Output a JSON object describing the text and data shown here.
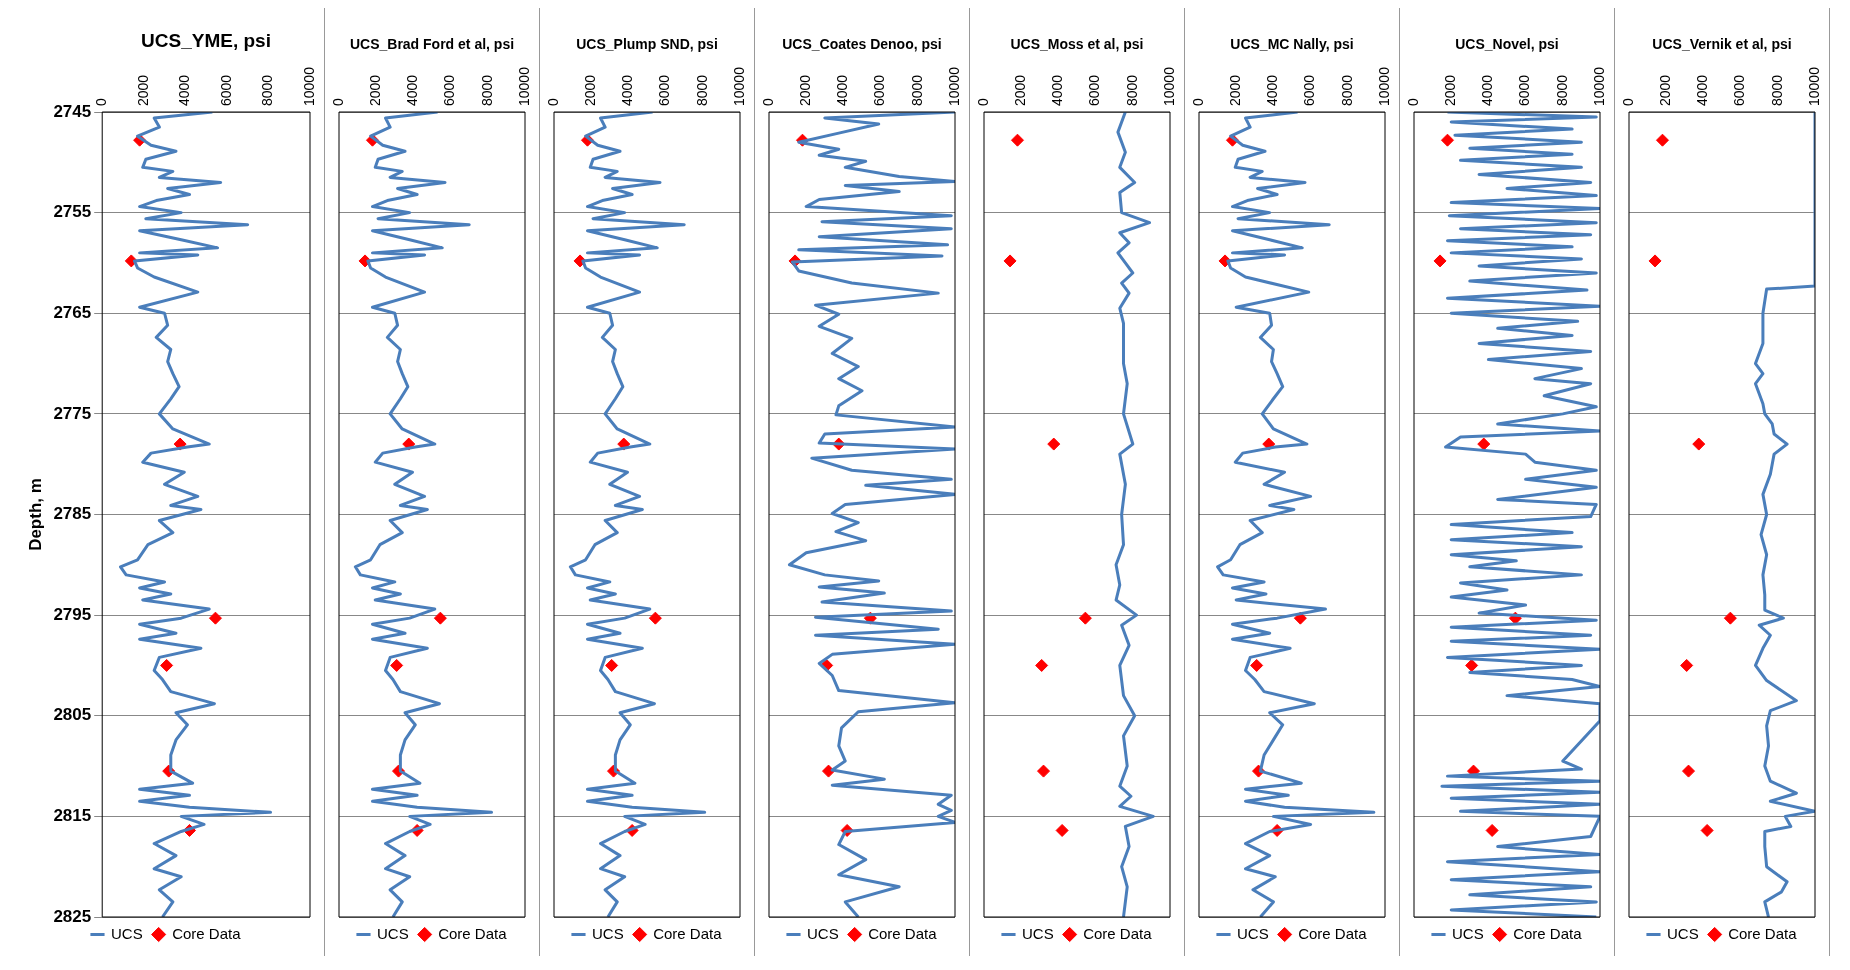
{
  "chart_data": [
    {
      "type": "line",
      "title": "UCS_YME, psi",
      "ylabel": "Depth, m",
      "xlim": [
        0,
        10000
      ],
      "xticks": [
        0,
        2000,
        4000,
        6000,
        8000,
        10000
      ],
      "ylim": [
        2825,
        2745
      ],
      "yticks": [
        2745,
        2755,
        2765,
        2775,
        2785,
        2795,
        2805,
        2815,
        2825
      ],
      "grid": "y",
      "legend": "bottom",
      "series": [
        {
          "name": "UCS",
          "type": "line",
          "color": "#4a7ebb",
          "marker": "none",
          "x": [
            5300,
            2500,
            2750,
            1700,
            2350,
            3550,
            2100,
            1950,
            3400,
            2750,
            5700,
            3150,
            4200,
            2600,
            1800,
            3800,
            2100,
            7000,
            1800,
            3800,
            5550,
            1800,
            4600,
            1550,
            1700,
            2500,
            4600,
            1800,
            3000,
            3150,
            2600,
            3300,
            3150,
            3400,
            3700,
            3300,
            2750,
            3400,
            5150,
            4100,
            2350,
            1950,
            3950,
            3000,
            4600,
            3300,
            4750,
            2750,
            3400,
            2200,
            1700,
            880,
            1150,
            3000,
            1800,
            3300,
            1950,
            5150,
            3800,
            1800,
            3550,
            1800,
            4750,
            2750,
            2500,
            2900,
            3300,
            5400,
            3550,
            4100,
            3550,
            3300,
            3300,
            4350,
            1800,
            4200,
            1800,
            4200,
            8100,
            3800,
            4900,
            3800,
            2500,
            3550,
            2500,
            3800,
            2750,
            3400,
            2900
          ],
          "values": [
            2745,
            2745.6,
            2746.5,
            2747.4,
            2748.3,
            2748.9,
            2749.7,
            2750.5,
            2750.9,
            2751.5,
            2752,
            2752.6,
            2753.2,
            2753.8,
            2754.4,
            2755,
            2755.6,
            2756.2,
            2756.8,
            2757.7,
            2758.5,
            2759,
            2759.2,
            2759.8,
            2760.5,
            2761.4,
            2762.9,
            2764.4,
            2765,
            2766.2,
            2767.4,
            2768.6,
            2769.8,
            2771,
            2772.3,
            2773.5,
            2775,
            2776.5,
            2778,
            2778.3,
            2778.9,
            2779.8,
            2780.8,
            2782,
            2783.2,
            2784.1,
            2784.5,
            2785.6,
            2786.8,
            2788,
            2789.5,
            2790.2,
            2791,
            2791.7,
            2792.3,
            2792.9,
            2793.5,
            2794.4,
            2795.3,
            2795.9,
            2796.8,
            2797.4,
            2798.3,
            2799.2,
            2800.5,
            2801.4,
            2802.6,
            2803.8,
            2804.7,
            2805.9,
            2807.4,
            2808.9,
            2810.5,
            2811.7,
            2812.3,
            2812.9,
            2813.5,
            2814.1,
            2814.6,
            2815,
            2815.8,
            2816.5,
            2817.7,
            2818.9,
            2820.2,
            2821,
            2822.3,
            2823.5,
            2825
          ]
        },
        {
          "name": "Core Data",
          "type": "scatter",
          "color": "#ff0000",
          "marker": "diamond",
          "x": [
            1800,
            1400,
            3750,
            5450,
            3100,
            3200,
            4200
          ],
          "values": [
            2747.8,
            2759.8,
            2778,
            2795.3,
            2800,
            2810.5,
            2816.4
          ]
        }
      ]
    },
    {
      "type": "line",
      "title": "UCS_Brad Ford et al, psi",
      "xlim": [
        0,
        10000
      ],
      "xticks": [
        0,
        2000,
        4000,
        6000,
        8000,
        10000
      ],
      "ylim": [
        2825,
        2745
      ],
      "yticks": [
        2745,
        2755,
        2765,
        2775,
        2785,
        2795,
        2805,
        2815,
        2825
      ],
      "grid": "y",
      "legend": "bottom",
      "tick_labels": "x",
      "series": [
        {
          "name": "UCS",
          "type": "line",
          "color": "#4a7ebb",
          "marker": "none",
          "x": [
            5300,
            2500,
            2750,
            1700,
            2350,
            3550,
            2100,
            1950,
            3400,
            2750,
            5700,
            3150,
            4200,
            2600,
            1800,
            3800,
            2100,
            7000,
            1800,
            3800,
            5550,
            1800,
            4600,
            1550,
            1700,
            2500,
            4600,
            1800,
            3000,
            3150,
            2600,
            3300,
            3150,
            3400,
            3700,
            3300,
            2750,
            3400,
            5150,
            4100,
            2350,
            1950,
            3950,
            3000,
            4600,
            3300,
            4750,
            2750,
            3400,
            2200,
            1700,
            880,
            1150,
            3000,
            1800,
            3300,
            1950,
            5150,
            3800,
            1800,
            3550,
            1800,
            4750,
            2750,
            2500,
            2900,
            3300,
            5400,
            3550,
            4100,
            3550,
            3300,
            3300,
            4350,
            1800,
            4200,
            1800,
            4200,
            8200,
            3800,
            4900,
            3800,
            2500,
            3550,
            2500,
            3800,
            2750,
            3400,
            2900
          ],
          "values": [
            2745,
            2745.6,
            2746.5,
            2747.4,
            2748.3,
            2748.9,
            2749.7,
            2750.5,
            2750.9,
            2751.5,
            2752,
            2752.6,
            2753.2,
            2753.8,
            2754.4,
            2755,
            2755.6,
            2756.2,
            2756.8,
            2757.7,
            2758.5,
            2759,
            2759.2,
            2759.8,
            2760.5,
            2761.4,
            2762.9,
            2764.4,
            2765,
            2766.2,
            2767.4,
            2768.6,
            2769.8,
            2771,
            2772.3,
            2773.5,
            2775,
            2776.5,
            2778,
            2778.3,
            2778.9,
            2779.8,
            2780.8,
            2782,
            2783.2,
            2784.1,
            2784.5,
            2785.6,
            2786.8,
            2788,
            2789.5,
            2790.2,
            2791,
            2791.7,
            2792.3,
            2792.9,
            2793.5,
            2794.4,
            2795.3,
            2795.9,
            2796.8,
            2797.4,
            2798.3,
            2799.2,
            2800.5,
            2801.4,
            2802.6,
            2803.8,
            2804.7,
            2805.9,
            2807.4,
            2808.9,
            2810.5,
            2811.7,
            2812.3,
            2812.9,
            2813.5,
            2814.1,
            2814.6,
            2815,
            2815.8,
            2816.5,
            2817.7,
            2818.9,
            2820.2,
            2821,
            2822.3,
            2823.5,
            2825
          ]
        },
        {
          "name": "Core Data",
          "type": "scatter",
          "color": "#ff0000",
          "marker": "diamond",
          "x": [
            1800,
            1400,
            3750,
            5450,
            3100,
            3200,
            4200
          ],
          "values": [
            2747.8,
            2759.8,
            2778,
            2795.3,
            2800,
            2810.5,
            2816.4
          ]
        }
      ]
    },
    {
      "type": "line",
      "title": "UCS_Plump SND, psi",
      "xlim": [
        0,
        10000
      ],
      "xticks": [
        0,
        2000,
        4000,
        6000,
        8000,
        10000
      ],
      "ylim": [
        2825,
        2745
      ],
      "yticks": [
        2745,
        2755,
        2765,
        2775,
        2785,
        2795,
        2805,
        2815,
        2825
      ],
      "grid": "y",
      "legend": "bottom",
      "tick_labels": "x",
      "series": [
        {
          "name": "UCS",
          "type": "line",
          "color": "#4a7ebb",
          "marker": "none",
          "x": [
            5300,
            2500,
            2750,
            1700,
            2350,
            3550,
            2100,
            1950,
            3400,
            2750,
            5700,
            3150,
            4200,
            2600,
            1800,
            3800,
            2100,
            7000,
            1800,
            3800,
            5550,
            1800,
            4600,
            1550,
            1700,
            2500,
            4600,
            1800,
            3000,
            3150,
            2600,
            3300,
            3150,
            3400,
            3700,
            3300,
            2750,
            3400,
            5150,
            4100,
            2350,
            1950,
            3950,
            3000,
            4600,
            3300,
            4750,
            2750,
            3400,
            2200,
            1700,
            880,
            1150,
            3000,
            1800,
            3300,
            1950,
            5150,
            3800,
            1800,
            3550,
            1800,
            4750,
            2750,
            2500,
            2900,
            3300,
            5400,
            3550,
            4100,
            3550,
            3300,
            3300,
            4350,
            1800,
            4200,
            1800,
            4200,
            8100,
            3800,
            4900,
            3800,
            2500,
            3550,
            2500,
            3800,
            2750,
            3400,
            2900
          ],
          "values": [
            2745,
            2745.6,
            2746.5,
            2747.4,
            2748.3,
            2748.9,
            2749.7,
            2750.5,
            2750.9,
            2751.5,
            2752,
            2752.6,
            2753.2,
            2753.8,
            2754.4,
            2755,
            2755.6,
            2756.2,
            2756.8,
            2757.7,
            2758.5,
            2759,
            2759.2,
            2759.8,
            2760.5,
            2761.4,
            2762.9,
            2764.4,
            2765,
            2766.2,
            2767.4,
            2768.6,
            2769.8,
            2771,
            2772.3,
            2773.5,
            2775,
            2776.5,
            2778,
            2778.3,
            2778.9,
            2779.8,
            2780.8,
            2782,
            2783.2,
            2784.1,
            2784.5,
            2785.6,
            2786.8,
            2788,
            2789.5,
            2790.2,
            2791,
            2791.7,
            2792.3,
            2792.9,
            2793.5,
            2794.4,
            2795.3,
            2795.9,
            2796.8,
            2797.4,
            2798.3,
            2799.2,
            2800.5,
            2801.4,
            2802.6,
            2803.8,
            2804.7,
            2805.9,
            2807.4,
            2808.9,
            2810.5,
            2811.7,
            2812.3,
            2812.9,
            2813.5,
            2814.1,
            2814.6,
            2815,
            2815.8,
            2816.5,
            2817.7,
            2818.9,
            2820.2,
            2821,
            2822.3,
            2823.5,
            2825
          ]
        },
        {
          "name": "Core Data",
          "type": "scatter",
          "color": "#ff0000",
          "marker": "diamond",
          "x": [
            1800,
            1400,
            3750,
            5450,
            3100,
            3200,
            4200
          ],
          "values": [
            2747.8,
            2759.8,
            2778,
            2795.3,
            2800,
            2810.5,
            2816.4
          ]
        }
      ]
    },
    {
      "type": "line",
      "title": "UCS_Coates Denoo, psi",
      "xlim": [
        0,
        10000
      ],
      "xticks": [
        0,
        2000,
        4000,
        6000,
        8000,
        10000
      ],
      "ylim": [
        2825,
        2745
      ],
      "yticks": [
        2745,
        2755,
        2765,
        2775,
        2785,
        2795,
        2805,
        2815,
        2825
      ],
      "grid": "y",
      "legend": "bottom",
      "tick_labels": "x",
      "series": [
        {
          "name": "UCS",
          "type": "line",
          "color": "#4a7ebb",
          "marker": "none",
          "x": [
            10000,
            3000,
            5900,
            3750,
            1600,
            3750,
            2700,
            5200,
            4100,
            7000,
            10000,
            4100,
            7000,
            2700,
            2000,
            9800,
            2850,
            9800,
            2700,
            9600,
            1600,
            9300,
            1250,
            1600,
            4450,
            9100,
            2500,
            3750,
            2700,
            4450,
            3400,
            4800,
            3750,
            5000,
            3750,
            3600,
            10000,
            3000,
            2700,
            10000,
            2300,
            4450,
            9800,
            5200,
            10000,
            4100,
            3400,
            4800,
            3600,
            5200,
            2000,
            1100,
            3000,
            5900,
            2700,
            6200,
            2850,
            9800,
            2500,
            9100,
            2500,
            10000,
            3400,
            2700,
            3400,
            3750,
            10000,
            4800,
            3900,
            3750,
            4100,
            3400,
            6200,
            3400,
            9800,
            9100,
            9800,
            9100,
            10000,
            4100,
            3750,
            5200,
            3750,
            7000,
            4100,
            4800
          ],
          "values": [
            2745,
            2745.6,
            2746.2,
            2747.1,
            2748,
            2748.7,
            2749.3,
            2749.9,
            2750.5,
            2751.4,
            2751.9,
            2752.3,
            2752.9,
            2753.7,
            2754.4,
            2755.3,
            2755.9,
            2756.6,
            2757.4,
            2758.2,
            2758.7,
            2759.3,
            2759.9,
            2760.8,
            2762,
            2763,
            2764.2,
            2765.1,
            2766.3,
            2767.5,
            2769,
            2770.3,
            2771.5,
            2772.7,
            2774.2,
            2775.1,
            2776.3,
            2777,
            2777.9,
            2778.5,
            2779.4,
            2780.6,
            2781.5,
            2782.1,
            2783,
            2784,
            2784.9,
            2785.8,
            2786.7,
            2787.6,
            2788.8,
            2790,
            2791,
            2791.6,
            2792.2,
            2792.8,
            2793.7,
            2794.6,
            2795.2,
            2796.4,
            2797,
            2797.9,
            2798.9,
            2799.8,
            2801,
            2802.5,
            2803.7,
            2804.6,
            2806.2,
            2808,
            2809.5,
            2810.4,
            2811.3,
            2811.9,
            2812.9,
            2813.8,
            2814.4,
            2815,
            2815.6,
            2816.5,
            2817.8,
            2819.3,
            2820.8,
            2822,
            2823.5,
            2825
          ]
        },
        {
          "name": "Core Data",
          "type": "scatter",
          "color": "#ff0000",
          "marker": "diamond",
          "x": [
            1800,
            1400,
            3750,
            5450,
            3100,
            3200,
            4200
          ],
          "values": [
            2747.8,
            2759.8,
            2778,
            2795.3,
            2800,
            2810.5,
            2816.4
          ]
        }
      ]
    },
    {
      "type": "line",
      "title": "UCS_Moss et al, psi",
      "xlim": [
        0,
        10000
      ],
      "xticks": [
        0,
        2000,
        4000,
        6000,
        8000,
        10000
      ],
      "ylim": [
        2825,
        2745
      ],
      "yticks": [
        2745,
        2755,
        2765,
        2775,
        2785,
        2795,
        2805,
        2815,
        2825
      ],
      "grid": "y",
      "legend": "bottom",
      "tick_labels": "x",
      "series": [
        {
          "name": "UCS",
          "type": "line",
          "color": "#4a7ebb",
          "marker": "none",
          "x": [
            7600,
            7200,
            7600,
            7300,
            8100,
            7300,
            7400,
            8900,
            7300,
            7800,
            7200,
            7600,
            8000,
            7400,
            7800,
            7300,
            7500,
            7500,
            7700,
            7500,
            8000,
            7300,
            7600,
            7400,
            7500,
            7100,
            7300,
            7100,
            8200,
            7400,
            7800,
            7300,
            7500,
            8100,
            7500,
            7700,
            7300,
            7900,
            7300,
            9100,
            7600,
            7800,
            7400,
            7700,
            7500
          ],
          "values": [
            2745,
            2747,
            2749,
            2750.5,
            2752,
            2753,
            2755,
            2756,
            2757,
            2758,
            2759,
            2760,
            2761,
            2762,
            2763,
            2764.5,
            2766,
            2770,
            2772,
            2775,
            2778,
            2779,
            2782,
            2785,
            2788,
            2790,
            2792,
            2793.5,
            2795,
            2796,
            2798,
            2800,
            2803,
            2805,
            2807,
            2810,
            2812,
            2813,
            2814,
            2815,
            2816,
            2818,
            2820,
            2822,
            2825
          ]
        },
        {
          "name": "Core Data",
          "type": "scatter",
          "color": "#ff0000",
          "marker": "diamond",
          "x": [
            1800,
            1400,
            3750,
            5450,
            3100,
            3200,
            4200
          ],
          "values": [
            2747.8,
            2759.8,
            2778,
            2795.3,
            2800,
            2810.5,
            2816.4
          ]
        }
      ]
    },
    {
      "type": "line",
      "title": "UCS_MC Nally, psi",
      "xlim": [
        0,
        10000
      ],
      "xticks": [
        0,
        2000,
        4000,
        6000,
        8000,
        10000
      ],
      "ylim": [
        2825,
        2745
      ],
      "yticks": [
        2745,
        2755,
        2765,
        2775,
        2785,
        2795,
        2805,
        2815,
        2825
      ],
      "grid": "y",
      "legend": "bottom",
      "tick_labels": "x",
      "series": [
        {
          "name": "UCS",
          "type": "line",
          "color": "#4a7ebb",
          "marker": "none",
          "x": [
            5300,
            2500,
            2750,
            1700,
            2350,
            3550,
            2100,
            1950,
            3400,
            2750,
            5700,
            3150,
            4200,
            2600,
            1800,
            3800,
            2100,
            7000,
            1800,
            3800,
            5550,
            1800,
            4600,
            1550,
            1700,
            2500,
            5900,
            2000,
            3800,
            3900,
            3300,
            4000,
            3900,
            4200,
            4500,
            4000,
            3400,
            4000,
            5800,
            4100,
            2350,
            1950,
            4600,
            3500,
            6000,
            3800,
            5100,
            2750,
            3400,
            2200,
            1700,
            1000,
            1300,
            3500,
            1800,
            3600,
            2000,
            6800,
            4200,
            1800,
            3800,
            1800,
            4900,
            2750,
            2500,
            3000,
            3500,
            6200,
            3800,
            4500,
            4000,
            3500,
            3300,
            5500,
            2500,
            4800,
            2500,
            4600,
            9400,
            4000,
            6000,
            3800,
            2500,
            3800,
            2500,
            4100,
            2900,
            4000,
            3300
          ],
          "values": [
            2745,
            2745.6,
            2746.5,
            2747.4,
            2748.3,
            2748.9,
            2749.7,
            2750.5,
            2750.9,
            2751.5,
            2752,
            2752.6,
            2753.2,
            2753.8,
            2754.4,
            2755,
            2755.6,
            2756.2,
            2756.8,
            2757.7,
            2758.5,
            2759,
            2759.2,
            2759.8,
            2760.5,
            2761.4,
            2762.9,
            2764.4,
            2765,
            2766.2,
            2767.4,
            2768.6,
            2769.8,
            2771,
            2772.3,
            2773.5,
            2775,
            2776.5,
            2778,
            2778.3,
            2778.9,
            2779.8,
            2780.8,
            2782,
            2783.2,
            2784.1,
            2784.5,
            2785.6,
            2786.8,
            2788,
            2789.5,
            2790.2,
            2791,
            2791.7,
            2792.3,
            2792.9,
            2793.5,
            2794.4,
            2795.3,
            2795.9,
            2796.8,
            2797.4,
            2798.3,
            2799.2,
            2800.5,
            2801.4,
            2802.6,
            2803.8,
            2804.7,
            2805.9,
            2807.4,
            2808.9,
            2810.5,
            2811.7,
            2812.3,
            2812.9,
            2813.5,
            2814.1,
            2814.6,
            2815,
            2815.8,
            2816.5,
            2817.7,
            2818.9,
            2820.2,
            2821,
            2822.3,
            2823.5,
            2825
          ]
        },
        {
          "name": "Core Data",
          "type": "scatter",
          "color": "#ff0000",
          "marker": "diamond",
          "x": [
            1800,
            1400,
            3750,
            5450,
            3100,
            3200,
            4200
          ],
          "values": [
            2747.8,
            2759.8,
            2778,
            2795.3,
            2800,
            2810.5,
            2816.4
          ]
        }
      ]
    },
    {
      "type": "line",
      "title": "UCS_Novel, psi",
      "xlim": [
        0,
        10000
      ],
      "xticks": [
        0,
        2000,
        4000,
        6000,
        8000,
        10000
      ],
      "ylim": [
        2825,
        2745
      ],
      "yticks": [
        2745,
        2755,
        2765,
        2775,
        2785,
        2795,
        2805,
        2815,
        2825
      ],
      "grid": "y",
      "legend": "bottom",
      "tick_labels": "x",
      "series": [
        {
          "name": "UCS",
          "type": "line",
          "color": "#4a7ebb",
          "marker": "none",
          "x": [
            1800,
            9800,
            2000,
            8500,
            2200,
            9000,
            3000,
            8500,
            2500,
            9000,
            3500,
            9500,
            5000,
            9800,
            2000,
            10000,
            1900,
            9800,
            2500,
            9500,
            1800,
            8500,
            2000,
            9000,
            3500,
            9800,
            3000,
            9300,
            1800,
            10000,
            2000,
            8800,
            4500,
            8500,
            3500,
            9500,
            4000,
            9000,
            6500,
            9500,
            7000,
            9800,
            8000,
            4500,
            10000,
            2500,
            1700,
            6000,
            6500,
            9800,
            6000,
            9800,
            4500,
            9800,
            9500,
            2000,
            8500,
            2000,
            9000,
            2000,
            5500,
            3000,
            9000,
            2500,
            5000,
            2000,
            6000,
            3500,
            9800,
            2000,
            9500,
            2000,
            10000,
            1800,
            9000,
            3000,
            8500,
            10000,
            5000,
            10000,
            10000,
            8000,
            9000,
            1800,
            10000,
            1500,
            10000,
            2000,
            10000,
            2500,
            10000,
            9500,
            4500,
            10000,
            1800,
            10000,
            2000,
            9500,
            3000,
            9800,
            2000,
            9800
          ],
          "values": [
            2745,
            2745.5,
            2746,
            2746.7,
            2747.3,
            2748,
            2748.6,
            2749.2,
            2749.8,
            2750.5,
            2751.2,
            2752,
            2752.6,
            2753.3,
            2754,
            2754.6,
            2755.3,
            2756,
            2756.6,
            2757.2,
            2757.8,
            2758.4,
            2759,
            2759.6,
            2760.3,
            2761,
            2761.8,
            2762.7,
            2763.5,
            2764.3,
            2765,
            2765.8,
            2766.5,
            2767.2,
            2768,
            2768.8,
            2769.6,
            2770.5,
            2771.5,
            2772,
            2773.2,
            2774.3,
            2775,
            2776,
            2776.7,
            2777.3,
            2778.3,
            2779,
            2779.8,
            2780.6,
            2781.5,
            2782.3,
            2783.5,
            2784,
            2785.2,
            2786,
            2786.8,
            2787.5,
            2788.2,
            2789,
            2789.6,
            2790.2,
            2791,
            2791.8,
            2792.5,
            2793.2,
            2794,
            2794.8,
            2795.5,
            2796.2,
            2797,
            2797.6,
            2798.4,
            2799.2,
            2800,
            2800.7,
            2801.4,
            2802.1,
            2803,
            2803.8,
            2805.5,
            2809.5,
            2810.3,
            2811,
            2811.5,
            2812,
            2812.6,
            2813.2,
            2813.8,
            2814.5,
            2815,
            2817,
            2818,
            2818.8,
            2819.5,
            2820.5,
            2821.3,
            2822,
            2822.8,
            2823.5,
            2824.3,
            2825
          ]
        },
        {
          "name": "Core Data",
          "type": "scatter",
          "color": "#ff0000",
          "marker": "diamond",
          "x": [
            1800,
            1400,
            3750,
            5450,
            3100,
            3200,
            4200
          ],
          "values": [
            2747.8,
            2759.8,
            2778,
            2795.3,
            2800,
            2810.5,
            2816.4
          ]
        }
      ]
    },
    {
      "type": "line",
      "title": "UCS_Vernik et al, psi",
      "xlim": [
        0,
        10000
      ],
      "xticks": [
        0,
        2000,
        4000,
        6000,
        8000,
        10000
      ],
      "ylim": [
        2825,
        2745
      ],
      "yticks": [
        2745,
        2755,
        2765,
        2775,
        2785,
        2795,
        2805,
        2815,
        2825
      ],
      "grid": "y",
      "legend": "bottom",
      "tick_labels": "x",
      "series": [
        {
          "name": "UCS",
          "type": "line",
          "color": "#4a7ebb",
          "marker": "none",
          "x": [
            10000,
            10000,
            7400,
            7200,
            7200,
            6800,
            7200,
            6800,
            7200,
            7300,
            7700,
            7800,
            8500,
            7800,
            7600,
            7200,
            7400,
            7100,
            7400,
            7200,
            7300,
            7300,
            8300,
            7000,
            7600,
            7200,
            6800,
            7400,
            9000,
            7600,
            7400,
            7500,
            7300,
            7600,
            9000,
            7600,
            10000,
            8400,
            8700,
            7300,
            7300,
            7400,
            8500,
            8200,
            7300,
            7500
          ],
          "values": [
            2745,
            2762.3,
            2762.6,
            2765,
            2768,
            2770,
            2771,
            2772,
            2774,
            2775,
            2776,
            2777,
            2778,
            2779,
            2781,
            2783,
            2785,
            2787,
            2789,
            2791,
            2793,
            2794.5,
            2795.3,
            2796,
            2797,
            2798.3,
            2800,
            2801.5,
            2803.5,
            2804.5,
            2806,
            2808,
            2810,
            2811.5,
            2812.7,
            2813.5,
            2814.5,
            2815,
            2816,
            2816.5,
            2818,
            2820,
            2821.5,
            2822.5,
            2823.5,
            2825
          ]
        },
        {
          "name": "Core Data",
          "type": "scatter",
          "color": "#ff0000",
          "marker": "diamond",
          "x": [
            1800,
            1400,
            3750,
            5450,
            3100,
            3200,
            4200
          ],
          "values": [
            2747.8,
            2759.8,
            2778,
            2795.3,
            2800,
            2810.5,
            2816.4
          ]
        }
      ]
    }
  ]
}
